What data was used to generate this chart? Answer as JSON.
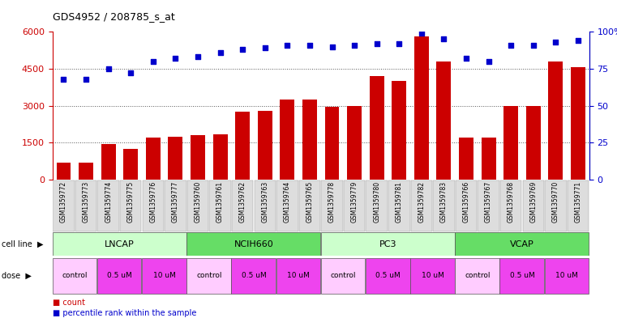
{
  "title": "GDS4952 / 208785_s_at",
  "samples": [
    "GSM1359772",
    "GSM1359773",
    "GSM1359774",
    "GSM1359775",
    "GSM1359776",
    "GSM1359777",
    "GSM1359760",
    "GSM1359761",
    "GSM1359762",
    "GSM1359763",
    "GSM1359764",
    "GSM1359765",
    "GSM1359778",
    "GSM1359779",
    "GSM1359780",
    "GSM1359781",
    "GSM1359782",
    "GSM1359783",
    "GSM1359766",
    "GSM1359767",
    "GSM1359768",
    "GSM1359769",
    "GSM1359770",
    "GSM1359771"
  ],
  "counts": [
    700,
    700,
    1450,
    1250,
    1700,
    1750,
    1800,
    1850,
    2750,
    2800,
    3250,
    3250,
    2950,
    3000,
    4200,
    4000,
    5800,
    4800,
    1700,
    1700,
    3000,
    3000,
    4800,
    4550
  ],
  "percentile_ranks": [
    68,
    68,
    75,
    72,
    80,
    82,
    83,
    86,
    88,
    89,
    91,
    91,
    90,
    91,
    92,
    92,
    99,
    95,
    82,
    80,
    91,
    91,
    93,
    94
  ],
  "bar_color": "#CC0000",
  "dot_color": "#0000CC",
  "ylim_left": [
    0,
    6000
  ],
  "ylim_right": [
    0,
    100
  ],
  "yticks_left": [
    0,
    1500,
    3000,
    4500,
    6000
  ],
  "yticks_right": [
    0,
    25,
    50,
    75,
    100
  ],
  "bg_color": "#ffffff",
  "plot_bg_color": "#ffffff",
  "xticklabel_bg": "#d3d3d3",
  "grid_color": "#555555",
  "label_count": "count",
  "label_percentile": "percentile rank within the sample",
  "cell_line_label": "cell line",
  "dose_label": "dose",
  "cell_lines": [
    {
      "name": "LNCAP",
      "start": 0,
      "end": 6,
      "color": "#ccffcc"
    },
    {
      "name": "NCIH660",
      "start": 6,
      "end": 12,
      "color": "#66dd66"
    },
    {
      "name": "PC3",
      "start": 12,
      "end": 18,
      "color": "#ccffcc"
    },
    {
      "name": "VCAP",
      "start": 18,
      "end": 24,
      "color": "#66dd66"
    }
  ],
  "doses_layout": [
    {
      "name": "control",
      "start": 0,
      "end": 2,
      "color": "#ffccff"
    },
    {
      "name": "0.5 uM",
      "start": 2,
      "end": 4,
      "color": "#ee44ee"
    },
    {
      "name": "10 uM",
      "start": 4,
      "end": 6,
      "color": "#ee44ee"
    },
    {
      "name": "control",
      "start": 6,
      "end": 8,
      "color": "#ffccff"
    },
    {
      "name": "0.5 uM",
      "start": 8,
      "end": 10,
      "color": "#ee44ee"
    },
    {
      "name": "10 uM",
      "start": 10,
      "end": 12,
      "color": "#ee44ee"
    },
    {
      "name": "control",
      "start": 12,
      "end": 14,
      "color": "#ffccff"
    },
    {
      "name": "0.5 uM",
      "start": 14,
      "end": 16,
      "color": "#ee44ee"
    },
    {
      "name": "10 uM",
      "start": 16,
      "end": 18,
      "color": "#ee44ee"
    },
    {
      "name": "control",
      "start": 18,
      "end": 20,
      "color": "#ffccff"
    },
    {
      "name": "0.5 uM",
      "start": 20,
      "end": 22,
      "color": "#ee44ee"
    },
    {
      "name": "10 uM",
      "start": 22,
      "end": 24,
      "color": "#ee44ee"
    }
  ]
}
